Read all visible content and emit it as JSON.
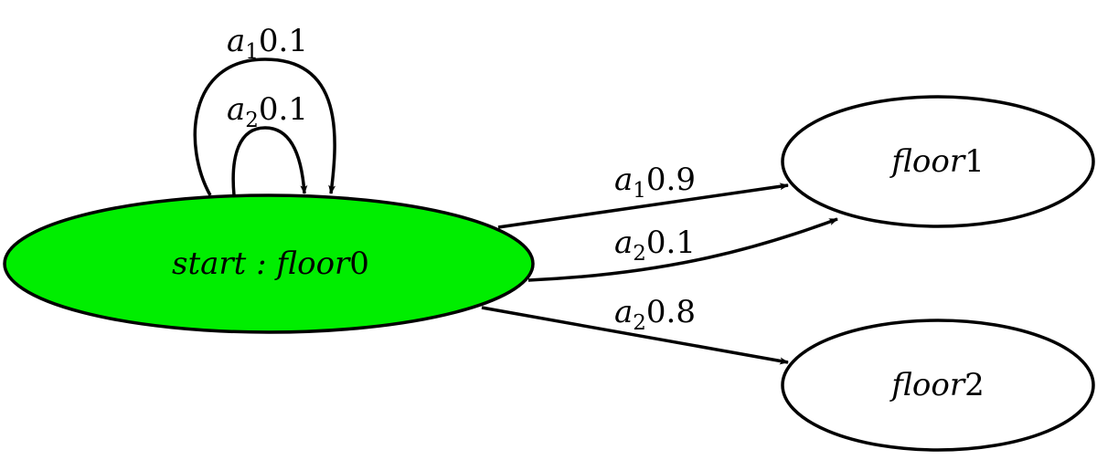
{
  "colors": {
    "start_fill": "#00ee00",
    "node_fill": "#ffffff",
    "stroke": "#000000"
  },
  "nodes": {
    "start": {
      "name": "start : floor",
      "index": "0"
    },
    "floor1": {
      "name": "floor",
      "index": "1"
    },
    "floor2": {
      "name": "floor",
      "index": "2"
    }
  },
  "edges": {
    "loop_a1": {
      "action": "a",
      "sub": "1",
      "prob": "0.1"
    },
    "loop_a2": {
      "action": "a",
      "sub": "2",
      "prob": "0.1"
    },
    "to_floor1_a1": {
      "action": "a",
      "sub": "1",
      "prob": "0.9"
    },
    "to_floor1_a2": {
      "action": "a",
      "sub": "2",
      "prob": "0.1"
    },
    "to_floor2_a2": {
      "action": "a",
      "sub": "2",
      "prob": "0.8"
    }
  }
}
